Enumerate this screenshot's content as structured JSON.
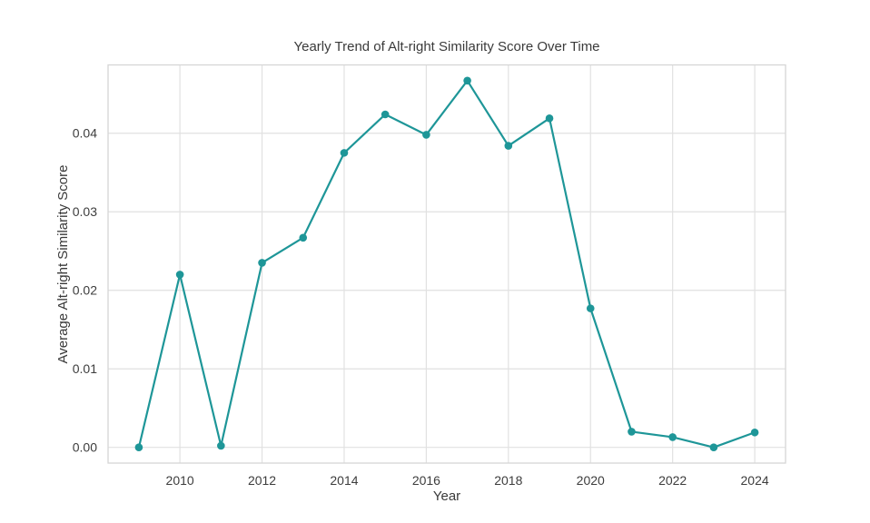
{
  "chart_data": {
    "type": "line",
    "title": "Yearly Trend of Alt-right Similarity Score Over Time",
    "xlabel": "Year",
    "ylabel": "Average Alt-right Similarity Score",
    "x": [
      2009,
      2010,
      2011,
      2012,
      2013,
      2014,
      2015,
      2016,
      2017,
      2018,
      2019,
      2020,
      2021,
      2022,
      2023,
      2024
    ],
    "series": [
      {
        "name": "Average Alt-right Similarity Score",
        "values": [
          0.0,
          0.022,
          0.0002,
          0.0235,
          0.0267,
          0.0375,
          0.0424,
          0.0398,
          0.0467,
          0.0384,
          0.0419,
          0.0177,
          0.002,
          0.0013,
          0.0,
          0.0019
        ]
      }
    ],
    "xticks": [
      2010,
      2012,
      2014,
      2016,
      2018,
      2020,
      2022,
      2024
    ],
    "xtick_labels": [
      "2010",
      "2012",
      "2014",
      "2016",
      "2018",
      "2020",
      "2022",
      "2024"
    ],
    "yticks": [
      0.0,
      0.01,
      0.02,
      0.03,
      0.04
    ],
    "ytick_labels": [
      "0.00",
      "0.01",
      "0.02",
      "0.03",
      "0.04"
    ],
    "xlim": [
      2008.25,
      2024.75
    ],
    "ylim": [
      -0.002,
      0.0487
    ],
    "grid": true,
    "legend": "none",
    "marker": "circle",
    "colors": {
      "line": "#1e9698",
      "marker": "#1e9698",
      "grid": "#e1e1e1",
      "spine": "#d6d6d6",
      "text": "#3a3a3a",
      "background": "#ffffff"
    }
  }
}
